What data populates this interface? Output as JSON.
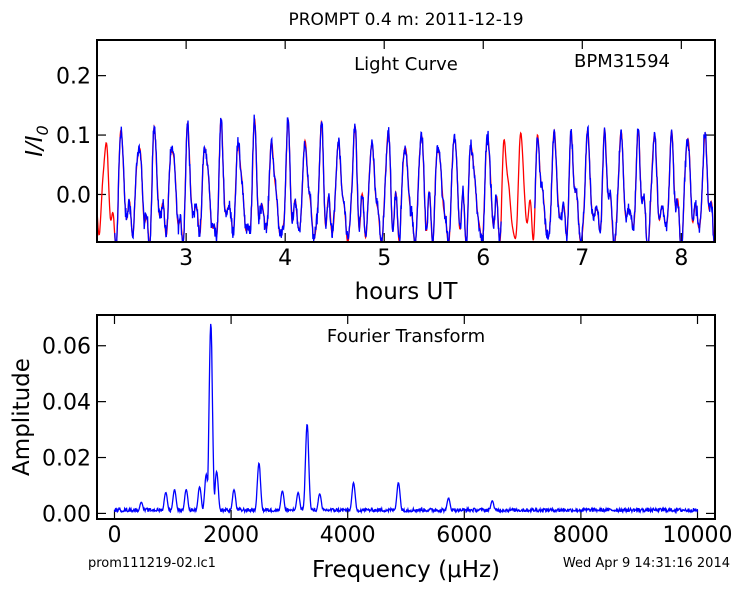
{
  "figure": {
    "title": "PROMPT 0.4 m:  2011-12-19",
    "footer_left": "prom111219-02.lc1",
    "footer_right": "Wed Apr  9 14:31:16 2014"
  },
  "chart_data": [
    {
      "type": "line",
      "title": "Light Curve",
      "annotation": "BPM31594",
      "xlabel": "hours UT",
      "ylabel": "I/I0",
      "xlim": [
        2.1,
        8.34
      ],
      "ylim": [
        -0.08,
        0.26
      ],
      "xticks": [
        3,
        4,
        5,
        6,
        7,
        8
      ],
      "yticks": [
        0.0,
        0.1,
        0.2
      ],
      "ytick_labels": [
        "0.0",
        "0.1",
        "0.2"
      ],
      "grid": false,
      "series": [
        {
          "role": "observed data",
          "color": "#0000ff",
          "segments": [
            [
              2.28,
              6.18
            ],
            [
              6.52,
              8.34
            ]
          ],
          "model": "sum of sinusoids plus noise",
          "components": [
            {
              "frequency_uHz": 1652,
              "amplitude": 0.068
            },
            {
              "frequency_uHz": 3304,
              "amplitude": 0.032
            },
            {
              "frequency_uHz": 2478,
              "amplitude": 0.018
            },
            {
              "frequency_uHz": 4870,
              "amplitude": 0.011
            },
            {
              "frequency_uHz": 4100,
              "amplitude": 0.011
            }
          ],
          "noise_rms": 0.012
        },
        {
          "role": "fit",
          "color": "#ff0000",
          "segments": [
            [
              2.1,
              8.34
            ]
          ],
          "model": "sum of sinusoids",
          "components": [
            {
              "frequency_uHz": 1652,
              "amplitude": 0.068
            },
            {
              "frequency_uHz": 3304,
              "amplitude": 0.032
            },
            {
              "frequency_uHz": 2478,
              "amplitude": 0.018
            },
            {
              "frequency_uHz": 4870,
              "amplitude": 0.011
            },
            {
              "frequency_uHz": 4100,
              "amplitude": 0.011
            }
          ]
        }
      ]
    },
    {
      "type": "line",
      "title": "Fourier Transform",
      "xlabel": "Frequency (μHz)",
      "ylabel": "Amplitude",
      "xlim": [
        -300,
        10300
      ],
      "ylim": [
        -0.002,
        0.071
      ],
      "xticks": [
        0,
        2000,
        4000,
        6000,
        8000,
        10000
      ],
      "yticks": [
        0.0,
        0.02,
        0.04,
        0.06
      ],
      "ytick_labels": [
        "0.00",
        "0.02",
        "0.04",
        "0.06"
      ],
      "grid": false,
      "series": [
        {
          "color": "#0000ff",
          "x_range": [
            0,
            10000
          ],
          "peaks": [
            {
              "x": 1652,
              "y": 0.068
            },
            {
              "x": 3304,
              "y": 0.032
            },
            {
              "x": 2478,
              "y": 0.018
            },
            {
              "x": 1752,
              "y": 0.015
            },
            {
              "x": 1575,
              "y": 0.014
            },
            {
              "x": 4870,
              "y": 0.011
            },
            {
              "x": 4100,
              "y": 0.011
            },
            {
              "x": 1460,
              "y": 0.0095
            },
            {
              "x": 1030,
              "y": 0.0085
            },
            {
              "x": 880,
              "y": 0.0075
            },
            {
              "x": 1230,
              "y": 0.0085
            },
            {
              "x": 2050,
              "y": 0.0085
            },
            {
              "x": 2880,
              "y": 0.008
            },
            {
              "x": 3150,
              "y": 0.0075
            },
            {
              "x": 3520,
              "y": 0.007
            },
            {
              "x": 5730,
              "y": 0.0055
            },
            {
              "x": 6480,
              "y": 0.0045
            },
            {
              "x": 460,
              "y": 0.004
            }
          ],
          "noise_floor": 0.0015
        }
      ]
    }
  ]
}
